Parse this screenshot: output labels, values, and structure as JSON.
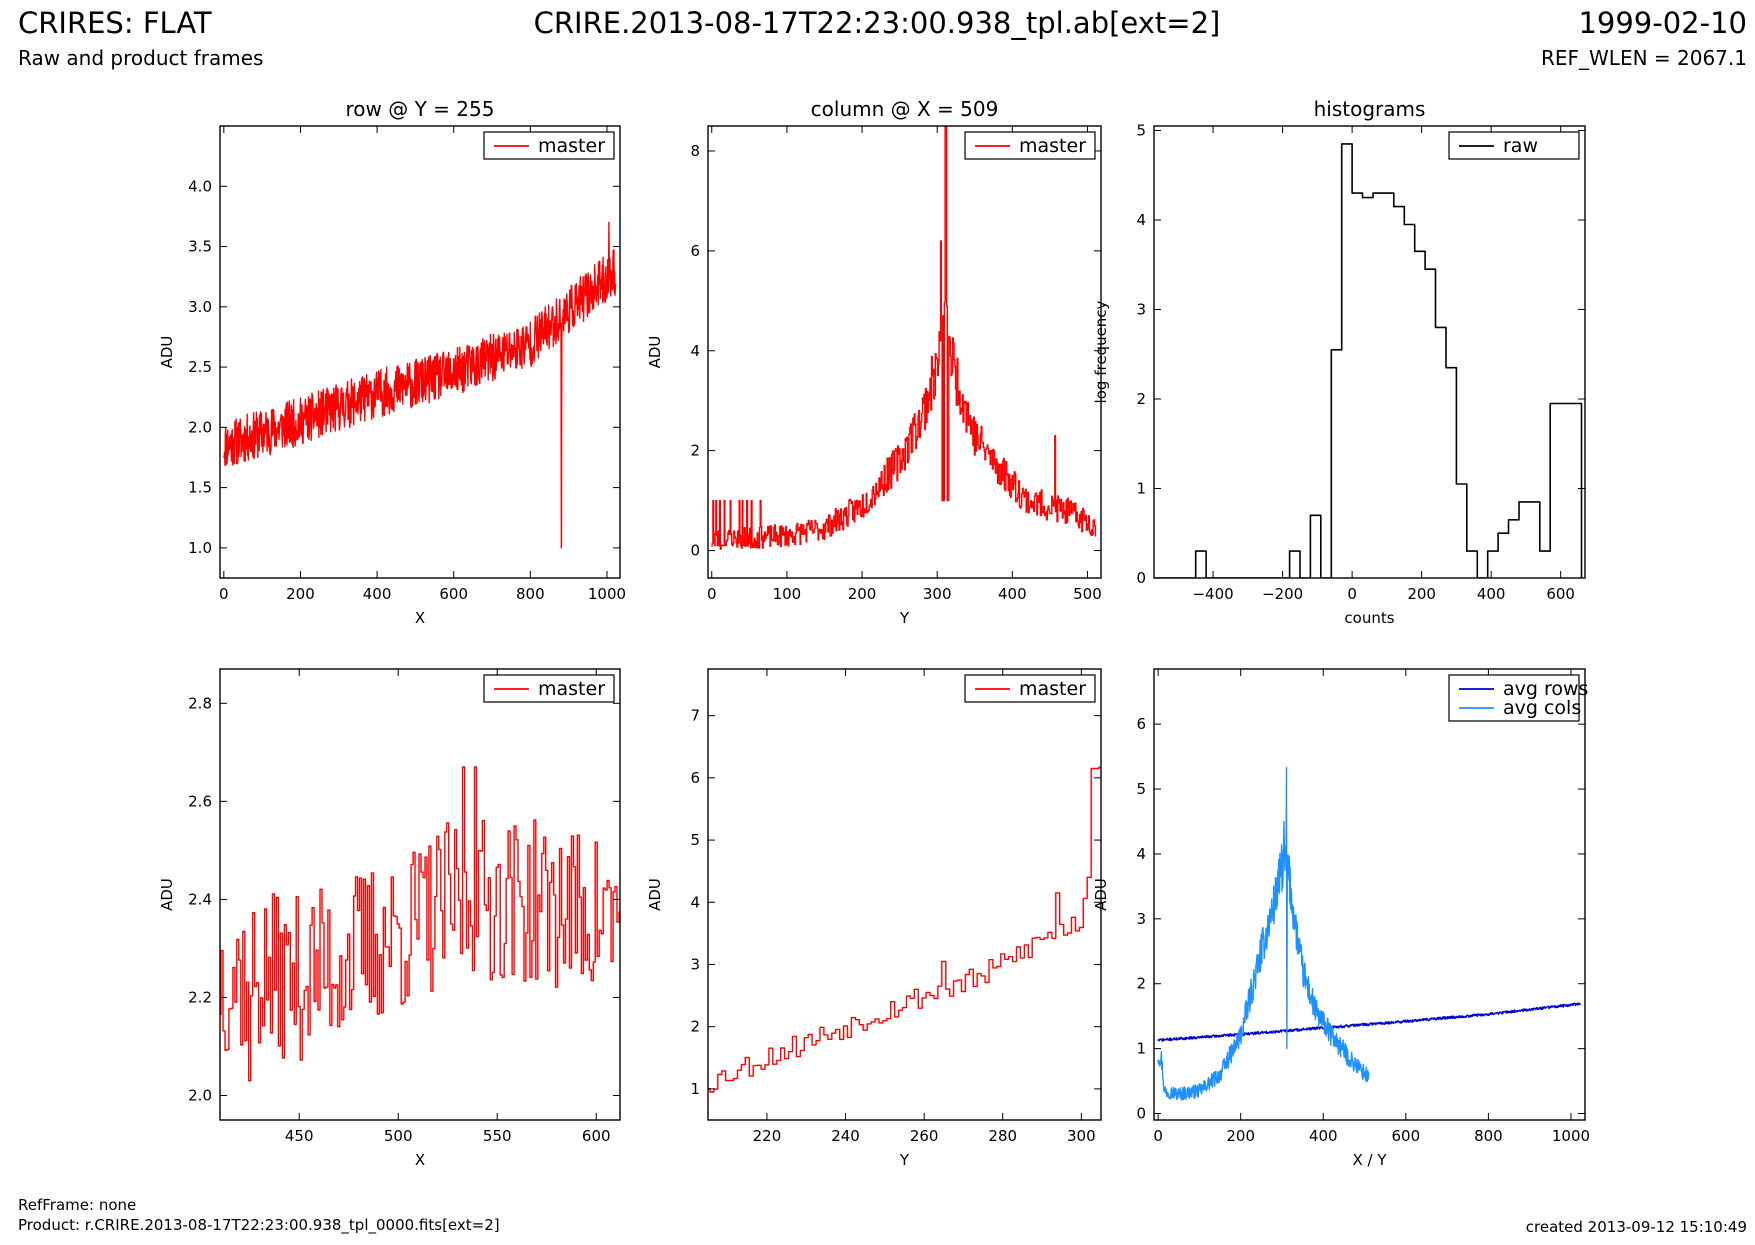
{
  "header": {
    "title": "CRIRES: FLAT",
    "subtitle": "Raw and product frames",
    "center": "CRIRE.2013-08-17T22:23:00.938_tpl.ab[ext=2]",
    "date": "1999-02-10",
    "ref_wlen": "REF_WLEN = 2067.1"
  },
  "footer": {
    "refframe": "RefFrame: none",
    "product": "Product: r.CRIRE.2013-08-17T22:23:00.938_tpl_0000.fits[ext=2]",
    "created": "created 2013-09-12 15:10:49"
  },
  "colors": {
    "master": "#ff0000",
    "raw": "#000000",
    "avg_rows": "#0000d0",
    "avg_cols": "#1e90ff"
  },
  "chart_data": [
    {
      "id": "row_full",
      "type": "line",
      "title": "row @ Y = 255",
      "xlabel": "X",
      "ylabel": "ADU",
      "xlim": [
        -10,
        1034
      ],
      "ylim": [
        0.75,
        4.5
      ],
      "xticks": [
        0,
        200,
        400,
        600,
        800,
        1000
      ],
      "yticks": [
        1.0,
        1.5,
        2.0,
        2.5,
        3.0,
        3.5,
        4.0
      ],
      "ytick_decimals": 1,
      "legend": "top-right",
      "series": [
        {
          "name": "master",
          "color": "#ff0000",
          "step": false,
          "gen": {
            "kind": "noisy",
            "x0": 0,
            "x1": 1023,
            "n": 1024,
            "amp": 0.2,
            "seed": 11,
            "knots": [
              [
                0,
                1.85
              ],
              [
                200,
                2.05
              ],
              [
                400,
                2.28
              ],
              [
                600,
                2.45
              ],
              [
                800,
                2.7
              ],
              [
                1023,
                3.3
              ]
            ],
            "spikes": [
              [
                881,
                1.0
              ],
              [
                1005,
                3.7
              ]
            ]
          }
        }
      ]
    },
    {
      "id": "col_full",
      "type": "line",
      "title": "column @ X = 509",
      "xlabel": "Y",
      "ylabel": "ADU",
      "xlim": [
        -5,
        518
      ],
      "ylim": [
        -0.55,
        8.5
      ],
      "xticks": [
        0,
        100,
        200,
        300,
        400,
        500
      ],
      "yticks": [
        0,
        2,
        4,
        6,
        8
      ],
      "ytick_decimals": 0,
      "legend": "top-right",
      "series": [
        {
          "name": "master",
          "color": "#ff0000",
          "step": true,
          "gen": {
            "kind": "noisy",
            "x0": 0,
            "x1": 511,
            "n": 512,
            "amp": 0.2,
            "seed": 23,
            "propamp": 0.1,
            "knots": [
              [
                0,
                0.2
              ],
              [
                100,
                0.3
              ],
              [
                150,
                0.45
              ],
              [
                200,
                0.9
              ],
              [
                250,
                1.8
              ],
              [
                280,
                2.7
              ],
              [
                300,
                3.7
              ],
              [
                310,
                4.5
              ],
              [
                325,
                3.5
              ],
              [
                350,
                2.3
              ],
              [
                380,
                1.7
              ],
              [
                420,
                1.0
              ],
              [
                470,
                0.8
              ],
              [
                511,
                0.5
              ]
            ],
            "spikes": [
              [
                305,
                6.2
              ],
              [
                308,
                4.7
              ],
              [
                311,
                8.6
              ],
              [
                312,
                8.6
              ],
              [
                313,
                4.9
              ],
              [
                457,
                2.3
              ]
            ],
            "flat": [
              [
                2,
                1.0
              ],
              [
                4,
                0.1
              ],
              [
                6,
                1.0
              ],
              [
                8,
                0.1
              ],
              [
                11,
                1.0
              ],
              [
                13,
                0.1
              ],
              [
                17,
                1.0
              ],
              [
                19,
                0.1
              ],
              [
                25,
                1.0
              ],
              [
                28,
                0.1
              ],
              [
                37,
                1.0
              ],
              [
                39,
                0.1
              ],
              [
                41,
                1.0
              ],
              [
                43,
                0.1
              ],
              [
                47,
                1.0
              ],
              [
                50,
                0.15
              ],
              [
                53,
                1.0
              ],
              [
                56,
                0.15
              ],
              [
                65,
                1.0
              ],
              [
                67,
                0.2
              ],
              [
                307,
                1.0
              ],
              [
                309,
                1.0
              ],
              [
                314,
                1.0
              ],
              [
                315,
                1.0
              ]
            ]
          }
        }
      ]
    },
    {
      "id": "hist",
      "type": "step",
      "title": "histograms",
      "xlabel": "counts",
      "ylabel": "log frequency",
      "xlim": [
        -570,
        670
      ],
      "ylim": [
        0,
        5.05
      ],
      "xticks": [
        -400,
        -200,
        0,
        200,
        400,
        600
      ],
      "yticks": [
        0,
        1,
        2,
        3,
        4,
        5
      ],
      "ytick_decimals": 0,
      "legend": "top-right",
      "series": [
        {
          "name": "raw",
          "color": "#000000",
          "edges": [
            -570,
            -540,
            -510,
            -480,
            -450,
            -420,
            -390,
            -360,
            -330,
            -300,
            -270,
            -240,
            -210,
            -180,
            -150,
            -120,
            -90,
            -60,
            -30,
            0,
            30,
            60,
            90,
            120,
            150,
            180,
            210,
            240,
            270,
            300,
            330,
            360,
            390,
            420,
            450,
            480,
            510,
            540,
            570,
            600,
            630,
            660
          ],
          "values": [
            0,
            0,
            0,
            0,
            0.3,
            0,
            0,
            0,
            0,
            0,
            0,
            0,
            0,
            0.3,
            0,
            0.7,
            0,
            2.55,
            4.85,
            4.3,
            4.25,
            4.3,
            4.3,
            4.15,
            3.95,
            3.65,
            3.45,
            2.8,
            2.35,
            1.05,
            0.3,
            0,
            0.3,
            0.5,
            0.65,
            0.85,
            0.85,
            0.3,
            1.95,
            1.95,
            1.95
          ]
        }
      ]
    },
    {
      "id": "row_zoom",
      "type": "line",
      "xlabel": "X",
      "ylabel": "ADU",
      "xlim": [
        410,
        612
      ],
      "ylim": [
        1.95,
        2.87
      ],
      "xticks": [
        450,
        500,
        550,
        600
      ],
      "yticks": [
        2.0,
        2.2,
        2.4,
        2.6,
        2.8
      ],
      "ytick_decimals": 1,
      "legend": "top-right",
      "series": [
        {
          "name": "master",
          "color": "#ff0000",
          "step": true,
          "gen": {
            "kind": "noisy",
            "x0": 410,
            "x1": 612,
            "n": 203,
            "amp": 0.17,
            "seed": 37,
            "knots": [
              [
                410,
                2.25
              ],
              [
                450,
                2.24
              ],
              [
                500,
                2.33
              ],
              [
                530,
                2.4
              ],
              [
                560,
                2.4
              ],
              [
                612,
                2.36
              ]
            ],
            "spikes": [
              [
                425,
                2.03
              ],
              [
                533,
                2.67
              ],
              [
                539,
                2.67
              ]
            ]
          }
        }
      ]
    },
    {
      "id": "col_zoom",
      "type": "line",
      "xlabel": "Y",
      "ylabel": "ADU",
      "xlim": [
        205,
        305
      ],
      "ylim": [
        0.5,
        7.75
      ],
      "xticks": [
        220,
        240,
        260,
        280,
        300
      ],
      "yticks": [
        1,
        2,
        3,
        4,
        5,
        6,
        7
      ],
      "ytick_decimals": 0,
      "legend": "top-right",
      "series": [
        {
          "name": "master",
          "color": "#ff0000",
          "step": true,
          "gen": {
            "kind": "noisy",
            "x0": 205,
            "x1": 305,
            "n": 101,
            "amp": 0.2,
            "seed": 53,
            "knots": [
              [
                205,
                1.1
              ],
              [
                220,
                1.5
              ],
              [
                240,
                2.0
              ],
              [
                260,
                2.5
              ],
              [
                275,
                2.8
              ],
              [
                290,
                3.4
              ],
              [
                300,
                3.7
              ],
              [
                302,
                4.5
              ],
              [
                305,
                6.2
              ]
            ],
            "spikes": [
              [
                206,
                0.95
              ],
              [
                265,
                3.05
              ],
              [
                294,
                4.15
              ],
              [
                303,
                6.15
              ],
              [
                304,
                6.15
              ]
            ]
          }
        }
      ]
    },
    {
      "id": "avg",
      "type": "line",
      "xlabel": "X / Y",
      "ylabel": "ADU",
      "xlim": [
        -10,
        1034
      ],
      "ylim": [
        -0.1,
        6.85
      ],
      "xticks": [
        0,
        200,
        400,
        600,
        800,
        1000
      ],
      "yticks": [
        0,
        1,
        2,
        3,
        4,
        5,
        6
      ],
      "ytick_decimals": 0,
      "legend": "top-right",
      "series": [
        {
          "name": "avg rows",
          "color": "#0000d0",
          "step": false,
          "gen": {
            "kind": "noisy",
            "x0": 0,
            "x1": 1023,
            "n": 1024,
            "amp": 0.02,
            "seed": 71,
            "knots": [
              [
                0,
                1.13
              ],
              [
                200,
                1.22
              ],
              [
                400,
                1.32
              ],
              [
                600,
                1.42
              ],
              [
                800,
                1.53
              ],
              [
                1023,
                1.69
              ]
            ]
          }
        },
        {
          "name": "avg cols",
          "color": "#1e90ff",
          "step": false,
          "gen": {
            "kind": "noisy",
            "x0": 0,
            "x1": 511,
            "n": 512,
            "amp": 0.08,
            "seed": 97,
            "propamp": 0.08,
            "knots": [
              [
                0,
                0.9
              ],
              [
                8,
                0.85
              ],
              [
                15,
                0.35
              ],
              [
                50,
                0.3
              ],
              [
                100,
                0.35
              ],
              [
                150,
                0.6
              ],
              [
                200,
                1.2
              ],
              [
                250,
                2.5
              ],
              [
                280,
                3.2
              ],
              [
                300,
                3.8
              ],
              [
                312,
                3.9
              ],
              [
                330,
                3.0
              ],
              [
                350,
                2.2
              ],
              [
                380,
                1.6
              ],
              [
                420,
                1.2
              ],
              [
                470,
                0.8
              ],
              [
                511,
                0.55
              ]
            ],
            "spikes": [
              [
                305,
                4.5
              ],
              [
                311,
                5.33
              ],
              [
                312,
                1.0
              ]
            ]
          }
        }
      ]
    }
  ]
}
